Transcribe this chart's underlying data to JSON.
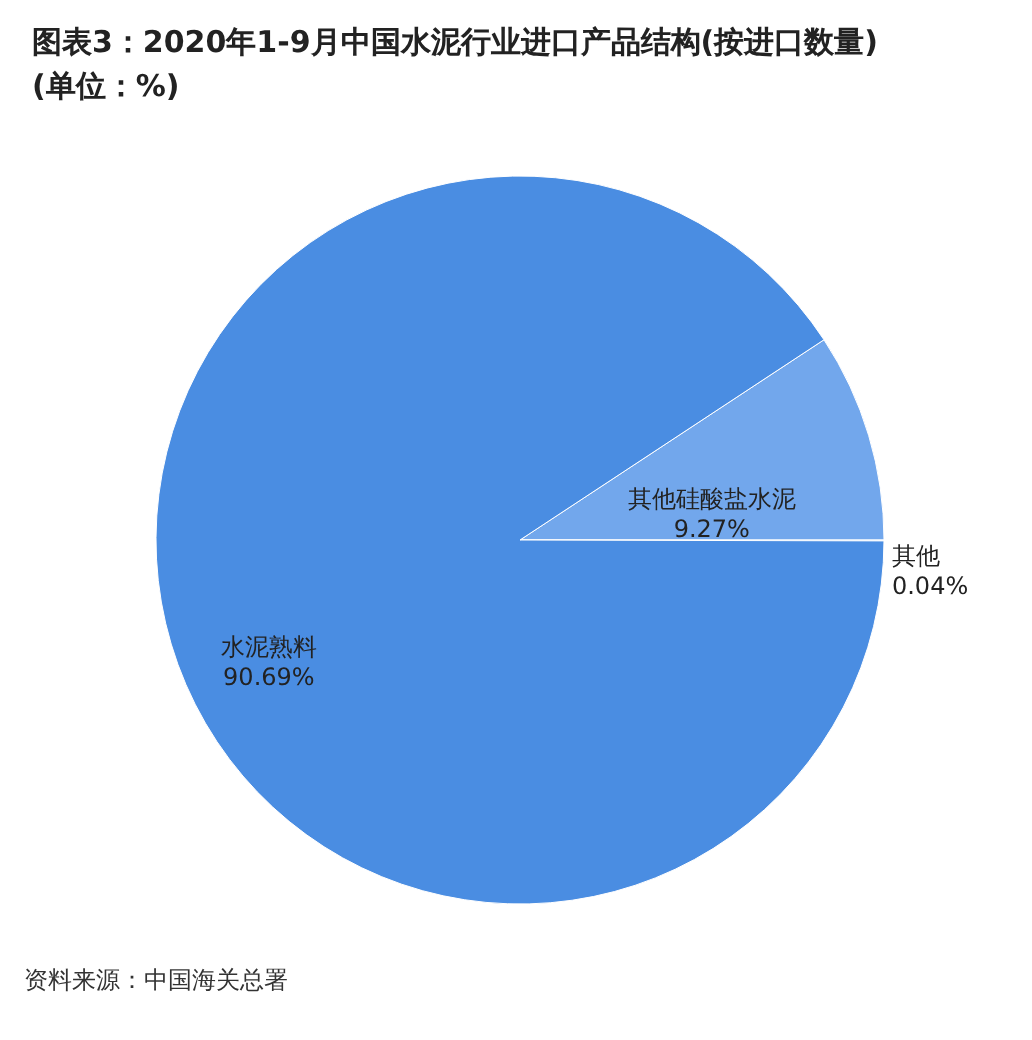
{
  "chart_data": {
    "type": "pie",
    "title": "图表3：2020年1-9月中国水泥行业进口产品结构(按进口数量)(单位：%)",
    "categories": [
      "其他硅酸盐水泥",
      "其他",
      "水泥熟料"
    ],
    "values": [
      9.27,
      0.04,
      90.69
    ],
    "colors": [
      "#72a7ec",
      "#a9c9f2",
      "#4a8de2"
    ],
    "value_labels": [
      "9.27%",
      "0.04%",
      "90.69%"
    ],
    "annotations": [
      "资料来源：中国海关总署"
    ]
  }
}
